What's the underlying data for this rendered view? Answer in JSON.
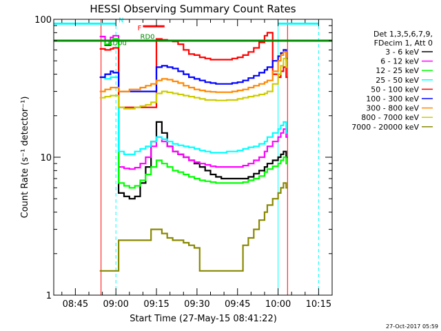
{
  "chart_data": {
    "type": "line",
    "title": "HESSI Observing Summary Count Rates",
    "xlabel": "Start Time (27-May-15 08:41:22)",
    "ylabel": "Count Rate (s⁻¹ detector⁻¹)",
    "y_scale": "log",
    "ylim": [
      1,
      100
    ],
    "y_ticks": [
      "1",
      "10",
      "100"
    ],
    "xlim_minutes": [
      -4,
      99
    ],
    "x_tick_labels": [
      {
        "t": 4,
        "label": "08:45"
      },
      {
        "t": 19,
        "label": "09:00"
      },
      {
        "t": 34,
        "label": "09:15"
      },
      {
        "t": 49,
        "label": "09:30"
      },
      {
        "t": 64,
        "label": "09:45"
      },
      {
        "t": 79,
        "label": "10:00"
      },
      {
        "t": 94,
        "label": "10:15"
      }
    ],
    "legend": {
      "placement": "right",
      "header": [
        "Det 1,3,5,6,7,9,",
        "FDecim 1, Att 0"
      ]
    },
    "series": [
      {
        "name": "3 - 6 keV",
        "color": "#000000",
        "x": [
          13,
          15,
          17,
          18,
          20,
          22,
          24,
          26,
          28,
          30,
          32,
          34,
          36,
          38,
          40,
          42,
          44,
          46,
          48,
          50,
          52,
          54,
          56,
          58,
          60,
          62,
          64,
          66,
          68,
          70,
          72,
          74,
          75,
          77,
          79,
          80,
          81,
          82
        ],
        "y": [
          70,
          65,
          70,
          72,
          5.5,
          5.2,
          5.0,
          5.2,
          6.5,
          8.5,
          13,
          18,
          15,
          12,
          11,
          10.5,
          10,
          9.5,
          9,
          8.5,
          8,
          7.5,
          7.2,
          7,
          7,
          7,
          7,
          7,
          7.2,
          7.6,
          8,
          8.5,
          9,
          9.5,
          10,
          10.5,
          11,
          10
        ]
      },
      {
        "name": "6 - 12 keV",
        "color": "#ff00ff",
        "x": [
          13,
          15,
          17,
          18,
          20,
          22,
          24,
          26,
          28,
          30,
          32,
          34,
          36,
          38,
          40,
          42,
          44,
          46,
          48,
          50,
          52,
          54,
          56,
          58,
          60,
          62,
          64,
          66,
          68,
          70,
          72,
          74,
          75,
          77,
          79,
          80,
          81,
          82
        ],
        "y": [
          75,
          70,
          74,
          76,
          8.5,
          8.3,
          8.2,
          8.4,
          9,
          10,
          12,
          14,
          13,
          12,
          11,
          10.5,
          10,
          9.5,
          9.2,
          9,
          8.8,
          8.6,
          8.5,
          8.5,
          8.5,
          8.5,
          8.5,
          8.7,
          9,
          9.5,
          10,
          11,
          12,
          13,
          14,
          15,
          16,
          14
        ]
      },
      {
        "name": "12 - 25 keV",
        "color": "#00ff00",
        "x": [
          13,
          15,
          17,
          18,
          20,
          22,
          24,
          26,
          28,
          30,
          32,
          34,
          36,
          38,
          40,
          42,
          44,
          46,
          48,
          50,
          52,
          54,
          56,
          58,
          60,
          62,
          64,
          66,
          68,
          70,
          72,
          74,
          75,
          77,
          79,
          80,
          81,
          82
        ],
        "y": [
          70,
          66,
          70,
          72,
          6.5,
          6.2,
          6,
          6.2,
          6.8,
          7.5,
          8.5,
          9.5,
          9,
          8.5,
          8,
          7.8,
          7.5,
          7.2,
          7,
          6.8,
          6.7,
          6.6,
          6.5,
          6.5,
          6.5,
          6.5,
          6.5,
          6.6,
          6.8,
          7,
          7.3,
          7.8,
          8.2,
          8.6,
          9,
          9.5,
          10,
          9
        ]
      },
      {
        "name": "25 - 50 keV",
        "color": "#00ffff",
        "x": [
          13,
          15,
          17,
          18,
          20,
          22,
          24,
          26,
          28,
          30,
          32,
          34,
          36,
          38,
          40,
          42,
          44,
          46,
          48,
          50,
          52,
          54,
          56,
          58,
          60,
          62,
          64,
          66,
          68,
          70,
          72,
          74,
          75,
          77,
          79,
          80,
          81,
          82
        ],
        "y": [
          38,
          37,
          38,
          38,
          11,
          10.5,
          10.5,
          11,
          11.5,
          12,
          13,
          14,
          13.5,
          13,
          12.5,
          12.2,
          12,
          11.8,
          11.5,
          11.2,
          11,
          10.8,
          10.8,
          10.8,
          11,
          11,
          11.2,
          11.5,
          11.8,
          12,
          12.5,
          13,
          14,
          15,
          16,
          17,
          18,
          15
        ]
      },
      {
        "name": "50 - 100 keV",
        "color": "#ff0000",
        "x": [
          13,
          15,
          17,
          18,
          20,
          22,
          24,
          26,
          28,
          30,
          32,
          34,
          36,
          38,
          40,
          42,
          44,
          46,
          48,
          50,
          52,
          54,
          56,
          58,
          60,
          62,
          64,
          66,
          68,
          70,
          72,
          74,
          75,
          77,
          79,
          80,
          81,
          82
        ],
        "y": [
          61,
          60,
          61,
          62,
          23,
          23,
          23,
          23,
          23,
          23,
          23,
          72,
          71,
          70,
          69,
          66,
          60,
          56,
          55,
          53,
          52,
          51,
          51,
          51,
          51,
          52,
          53,
          55,
          58,
          62,
          68,
          76,
          80,
          40,
          38,
          42,
          45,
          38
        ]
      },
      {
        "name": "100 - 300 keV",
        "color": "#0000ff",
        "x": [
          13,
          15,
          17,
          18,
          20,
          22,
          24,
          26,
          28,
          30,
          32,
          34,
          36,
          38,
          40,
          42,
          44,
          46,
          48,
          50,
          52,
          54,
          56,
          58,
          60,
          62,
          64,
          66,
          68,
          70,
          72,
          74,
          75,
          77,
          79,
          80,
          81,
          82
        ],
        "y": [
          38,
          40,
          42,
          41,
          30,
          30,
          30,
          30,
          30,
          30,
          30,
          45,
          46,
          45,
          44,
          42,
          40,
          38,
          37,
          36,
          35,
          34.5,
          34,
          34,
          34,
          34.5,
          35,
          36,
          37.5,
          39,
          41,
          43,
          45,
          50,
          54,
          57,
          60,
          52
        ]
      },
      {
        "name": "300 - 800 keV",
        "color": "#ff8800",
        "x": [
          13,
          15,
          17,
          18,
          20,
          22,
          24,
          26,
          28,
          30,
          32,
          34,
          36,
          38,
          40,
          42,
          44,
          46,
          48,
          50,
          52,
          54,
          56,
          58,
          60,
          62,
          64,
          66,
          68,
          70,
          72,
          74,
          75,
          77,
          79,
          80,
          81,
          82
        ],
        "y": [
          30,
          31,
          32,
          32,
          30,
          30,
          31,
          31,
          32,
          33,
          34,
          36,
          37,
          36.5,
          35.5,
          34.5,
          33,
          32,
          31,
          30.5,
          30,
          29.8,
          29.6,
          29.6,
          29.6,
          30,
          30.5,
          31,
          32,
          33,
          34,
          35,
          36,
          42,
          50,
          55,
          58,
          50
        ]
      },
      {
        "name": "800 - 7000 keV",
        "color": "#cccc00",
        "x": [
          13,
          15,
          17,
          18,
          20,
          22,
          24,
          26,
          28,
          30,
          32,
          34,
          36,
          38,
          40,
          42,
          44,
          46,
          48,
          50,
          52,
          54,
          56,
          58,
          60,
          62,
          64,
          66,
          68,
          70,
          72,
          74,
          75,
          77,
          79,
          80,
          81,
          82
        ],
        "y": [
          27,
          27.5,
          28,
          28,
          23,
          22.5,
          22.5,
          23,
          23.5,
          24,
          25,
          29,
          30,
          29.5,
          29,
          28.5,
          28,
          27.5,
          27,
          26.5,
          26,
          26,
          25.8,
          25.8,
          26,
          26,
          26.5,
          27,
          27.5,
          28,
          28.5,
          29,
          30,
          34,
          40,
          46,
          52,
          45
        ]
      },
      {
        "name": "7000 - 20000 keV",
        "color": "#888800",
        "x": [
          13,
          15,
          17,
          18,
          20,
          22,
          24,
          26,
          28,
          30,
          32,
          34,
          36,
          38,
          40,
          42,
          44,
          46,
          48,
          50,
          52,
          54,
          56,
          58,
          60,
          62,
          64,
          66,
          68,
          70,
          72,
          74,
          75,
          77,
          79,
          80,
          81,
          82
        ],
        "y": [
          1.5,
          1.5,
          1.5,
          1.5,
          2.5,
          2.5,
          2.5,
          2.5,
          2.5,
          2.5,
          3,
          3,
          2.8,
          2.6,
          2.5,
          2.5,
          2.4,
          2.3,
          2.2,
          1.5,
          1.5,
          1.5,
          1.5,
          1.5,
          1.5,
          1.5,
          1.5,
          2.3,
          2.6,
          3,
          3.5,
          4,
          4.5,
          5,
          5.5,
          6,
          6.5,
          6
        ]
      }
    ],
    "annotations": [
      {
        "text": "N",
        "color": "#00ffff",
        "x": 20,
        "y": 95
      },
      {
        "text": "F",
        "color": "#ff0000",
        "x": 27,
        "y": 83
      },
      {
        "text": "RD0",
        "color": "#008800",
        "x": 28,
        "y": 72
      },
      {
        "text": "RD0u",
        "color": "#008800",
        "x": 16,
        "y": 65
      }
    ],
    "overlay_bars": [
      {
        "label": "N",
        "color": "#00ffff",
        "y": 93,
        "segments": [
          [
            -4,
            19
          ],
          [
            79,
            94
          ]
        ]
      },
      {
        "label": "F",
        "color": "#ff0000",
        "y": 89,
        "segments": [
          [
            29,
            37
          ]
        ]
      },
      {
        "label": "RD0",
        "color": "#008800",
        "y": 70,
        "segments": [
          [
            -4,
            99
          ]
        ]
      }
    ],
    "vertical_lines": [
      {
        "color": "#00ffff",
        "style": "solid",
        "t": -4
      },
      {
        "color": "#00ffff",
        "style": "dashed",
        "t": 19
      },
      {
        "color": "#00ffff",
        "style": "solid",
        "t": 79
      },
      {
        "color": "#00ffff",
        "style": "dashed",
        "t": 94
      },
      {
        "color": "#ff0000",
        "style": "solid",
        "t": 13.5
      },
      {
        "color": "#ff0000",
        "style": "solid",
        "t": 82.5
      }
    ],
    "footer_stamp": "27-Oct-2017 05:59"
  }
}
